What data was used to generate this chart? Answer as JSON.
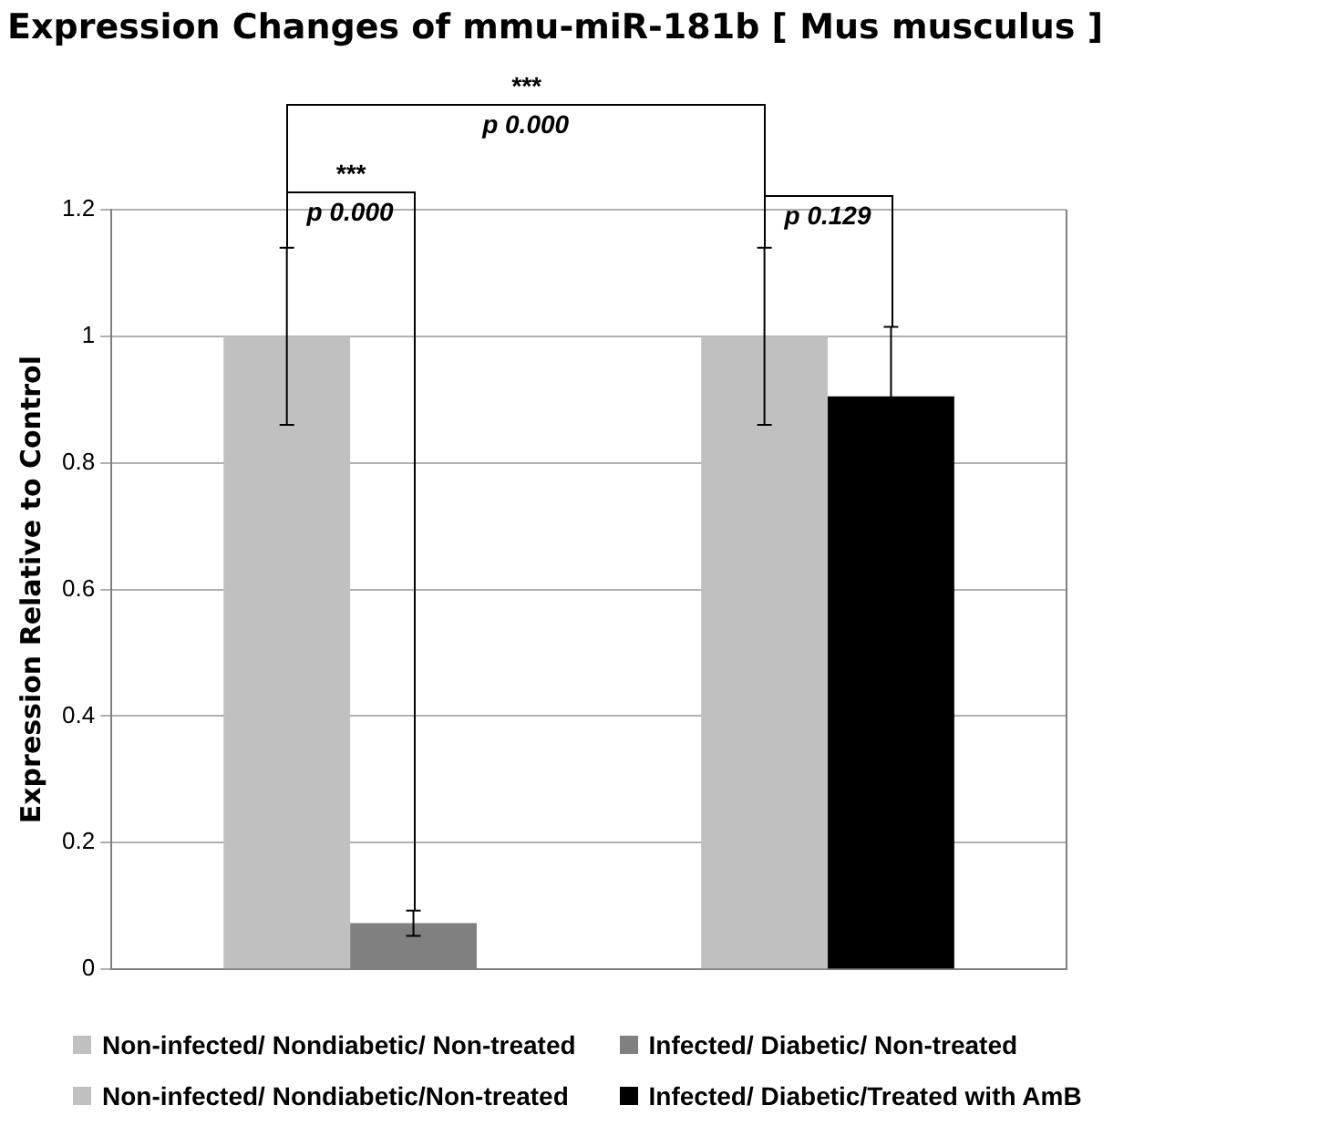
{
  "chart_data": {
    "type": "bar",
    "title": "Expression Changes of mmu-miR-181b [ Mus musculus ]",
    "ylabel": "Expression Relative to Control",
    "categories": [
      null,
      null
    ],
    "series": [
      {
        "name": "Non-infected/ Nondiabetic/ Non-treated",
        "color": "#c0c0c0",
        "values": [
          1,
          null
        ],
        "errors": [
          0.14,
          null
        ]
      },
      {
        "name": "Infected/ Diabetic/ Non-treated",
        "color": "#808080",
        "values": [
          0.073,
          null
        ],
        "errors": [
          0.02,
          null
        ]
      },
      {
        "name": "Non-infected/ Nondiabetic/Non-treated",
        "color": "#c0c0c0",
        "values": [
          null,
          1
        ],
        "errors": [
          null,
          0.14
        ]
      },
      {
        "name": "Infected/ Diabetic/Treated with AmB",
        "color": "#000000",
        "values": [
          null,
          0.905
        ],
        "errors": [
          null,
          0.11
        ]
      }
    ],
    "ylim": [
      0,
      1.2
    ],
    "yticks": [
      0,
      0.2,
      0.4,
      0.6,
      0.8,
      1,
      1.2
    ],
    "grid": "y",
    "legend": "bottom",
    "annotations": [
      "***",
      "p 0.000",
      "***",
      "p 0.000",
      "p 0.129"
    ]
  }
}
